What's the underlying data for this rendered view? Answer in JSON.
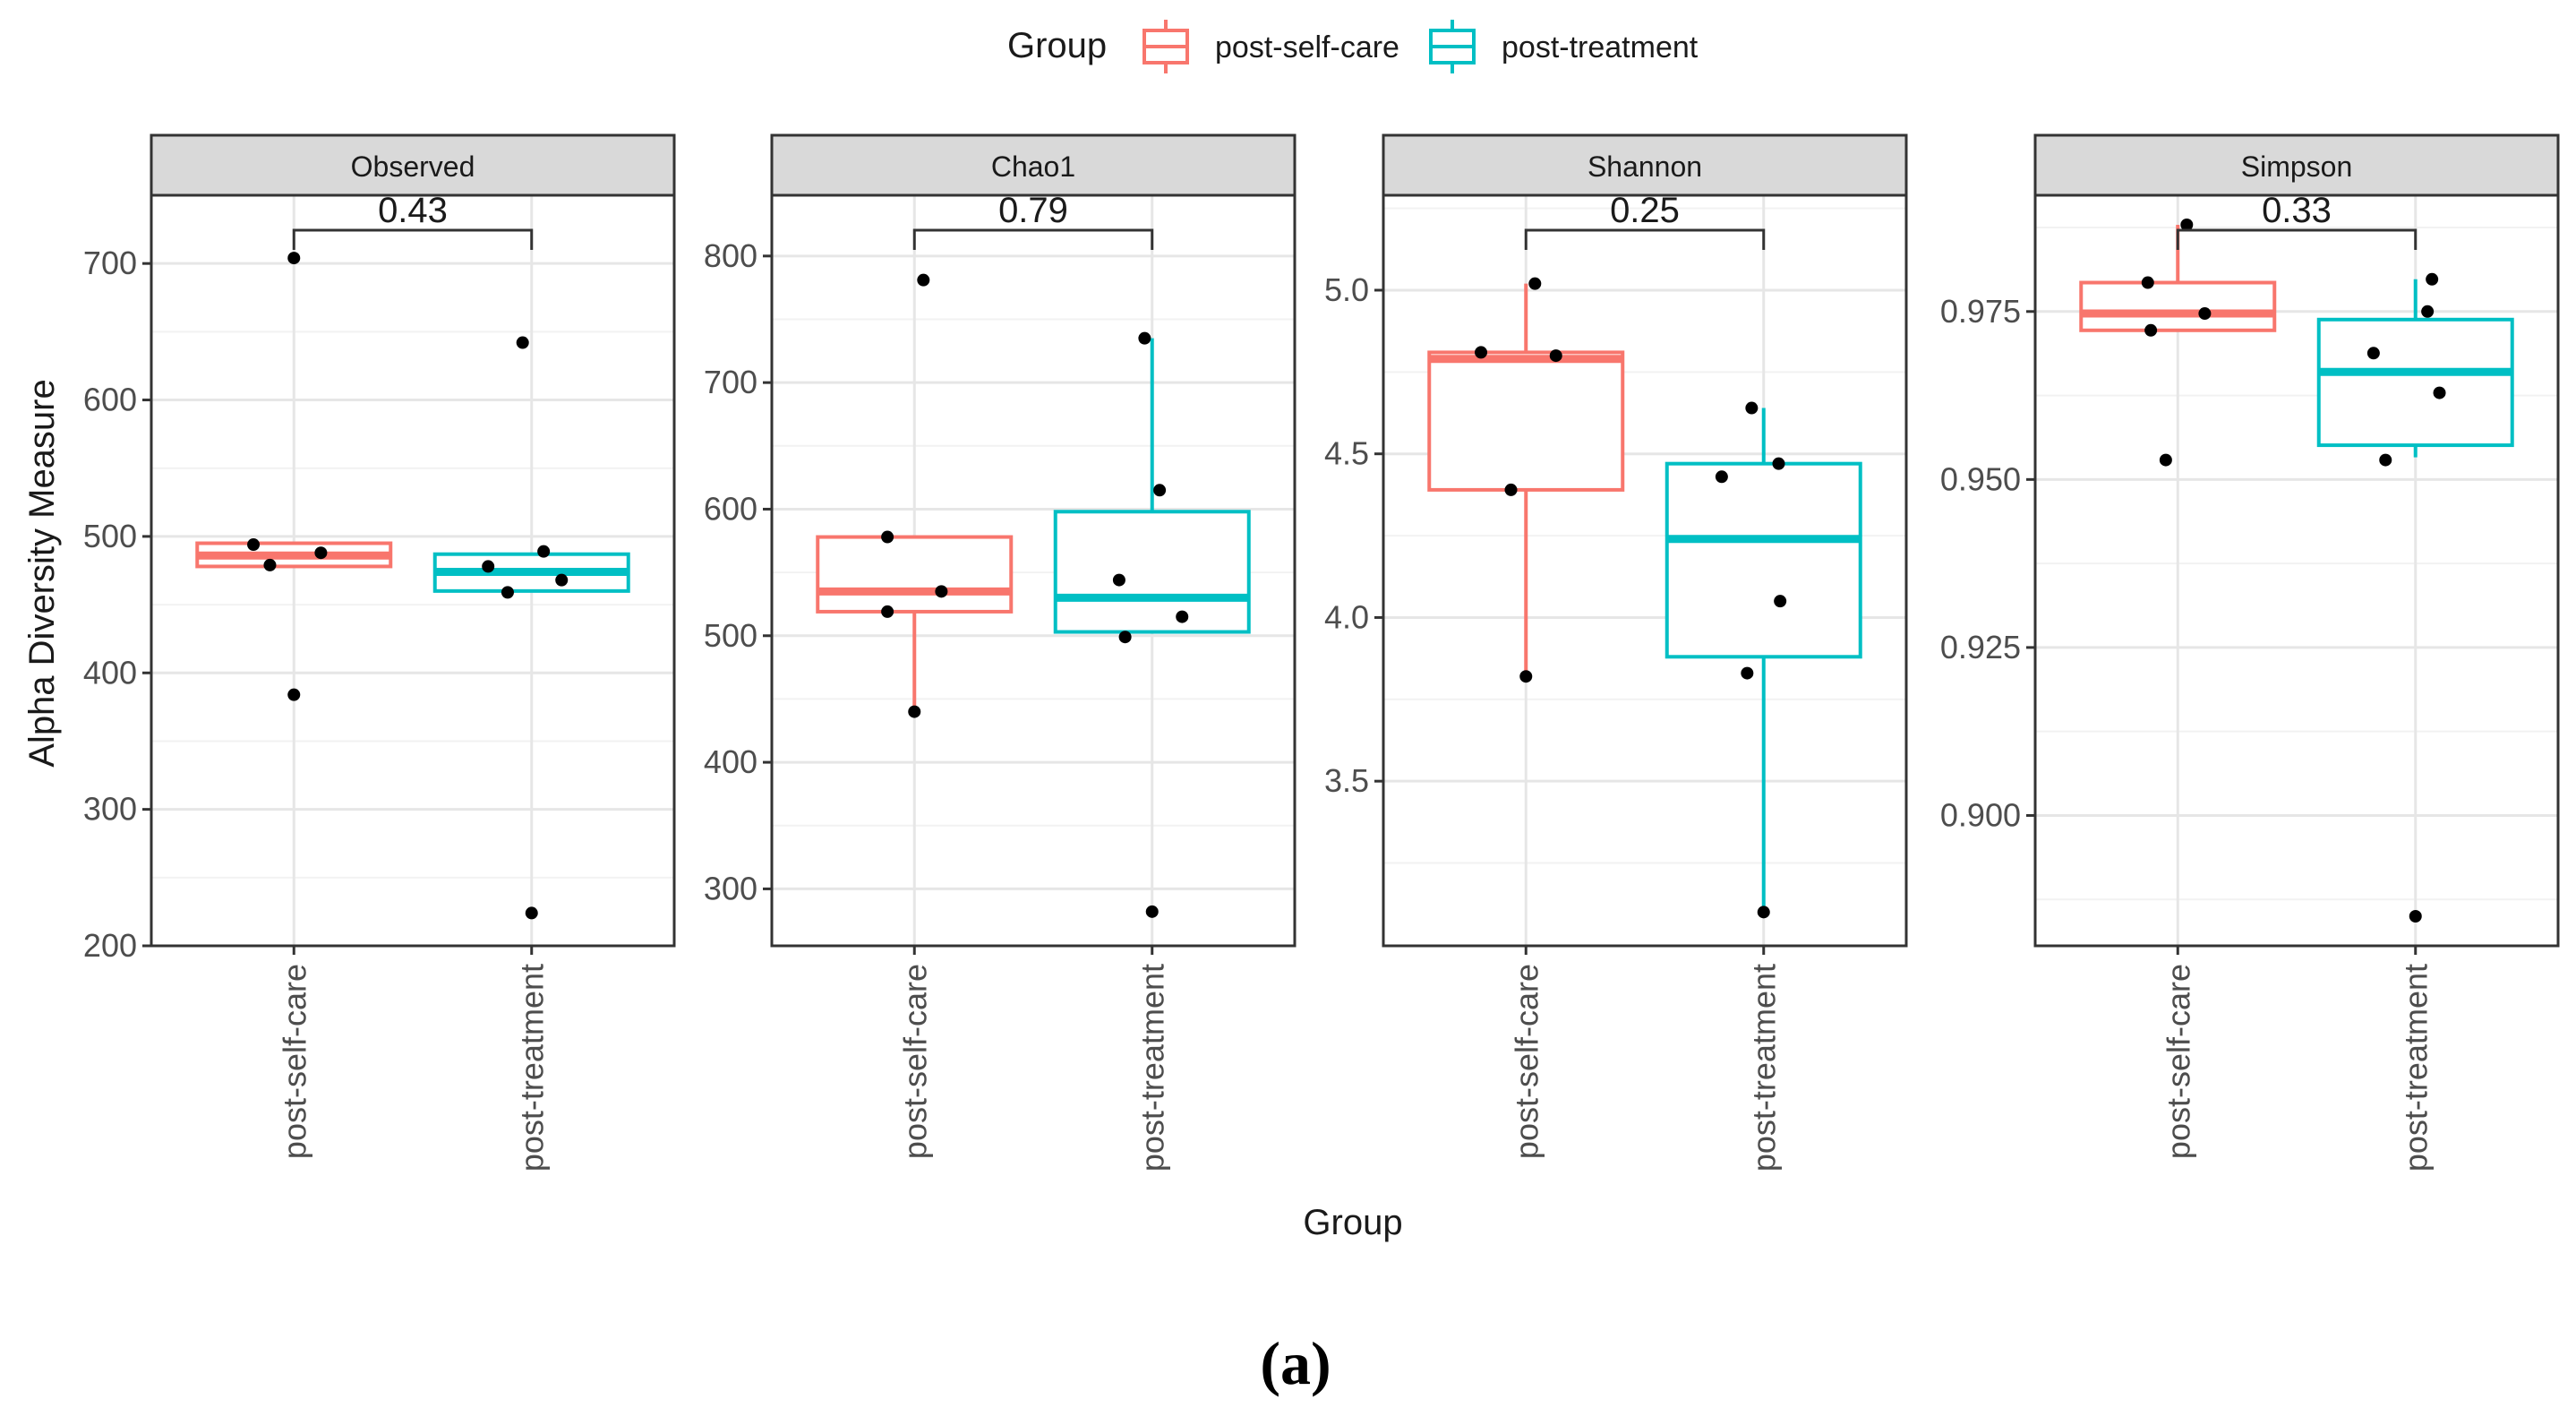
{
  "caption": "(a)",
  "chart_data": {
    "type": "boxplot",
    "ylabel": "Alpha Diversity Measure",
    "xlabel": "Group",
    "categories": [
      "post-self-care",
      "post-treatment"
    ],
    "legend": {
      "title": "Group",
      "position": "top-center",
      "entries": [
        {
          "name": "post-self-care",
          "color": "#F8766D"
        },
        {
          "name": "post-treatment",
          "color": "#00BFC4"
        }
      ]
    },
    "panels": [
      {
        "name": "Observed",
        "pvalue": "0.43",
        "ylim": [
          200,
          750
        ],
        "yticks": [
          200,
          300,
          400,
          500,
          600,
          700
        ],
        "ytick_labels": [
          "200",
          "300",
          "400",
          "500",
          "600",
          "700"
        ],
        "boxes": [
          {
            "group": "post-self-care",
            "q1": 478,
            "median": 486,
            "q3": 495,
            "whisker_low": 478,
            "whisker_high": 495
          },
          {
            "group": "post-treatment",
            "q1": 460,
            "median": 474,
            "q3": 487,
            "whisker_low": 460,
            "whisker_high": 487
          }
        ],
        "points": [
          {
            "group": "post-self-care",
            "jitter": 0.0,
            "y": 704
          },
          {
            "group": "post-self-care",
            "jitter": -0.27,
            "y": 494
          },
          {
            "group": "post-self-care",
            "jitter": 0.18,
            "y": 488
          },
          {
            "group": "post-self-care",
            "jitter": -0.16,
            "y": 479
          },
          {
            "group": "post-self-care",
            "jitter": 0.0,
            "y": 384
          },
          {
            "group": "post-treatment",
            "jitter": -0.06,
            "y": 642
          },
          {
            "group": "post-treatment",
            "jitter": 0.08,
            "y": 489
          },
          {
            "group": "post-treatment",
            "jitter": -0.29,
            "y": 478
          },
          {
            "group": "post-treatment",
            "jitter": 0.2,
            "y": 468
          },
          {
            "group": "post-treatment",
            "jitter": -0.16,
            "y": 459
          },
          {
            "group": "post-treatment",
            "jitter": 0.0,
            "y": 224
          }
        ]
      },
      {
        "name": "Chao1",
        "pvalue": "0.79",
        "ylim": [
          255,
          848
        ],
        "yticks": [
          300,
          400,
          500,
          600,
          700,
          800
        ],
        "ytick_labels": [
          "300",
          "400",
          "500",
          "600",
          "700",
          "800"
        ],
        "boxes": [
          {
            "group": "post-self-care",
            "q1": 519,
            "median": 535,
            "q3": 578,
            "whisker_low": 440,
            "whisker_high": 578
          },
          {
            "group": "post-treatment",
            "q1": 503,
            "median": 530,
            "q3": 598,
            "whisker_low": 503,
            "whisker_high": 735
          }
        ],
        "points": [
          {
            "group": "post-self-care",
            "jitter": 0.06,
            "y": 781
          },
          {
            "group": "post-self-care",
            "jitter": -0.18,
            "y": 578
          },
          {
            "group": "post-self-care",
            "jitter": 0.18,
            "y": 535
          },
          {
            "group": "post-self-care",
            "jitter": -0.18,
            "y": 519
          },
          {
            "group": "post-self-care",
            "jitter": 0.0,
            "y": 440
          },
          {
            "group": "post-treatment",
            "jitter": -0.05,
            "y": 735
          },
          {
            "group": "post-treatment",
            "jitter": 0.05,
            "y": 615
          },
          {
            "group": "post-treatment",
            "jitter": -0.22,
            "y": 544
          },
          {
            "group": "post-treatment",
            "jitter": 0.2,
            "y": 515
          },
          {
            "group": "post-treatment",
            "jitter": -0.18,
            "y": 499
          },
          {
            "group": "post-treatment",
            "jitter": 0.0,
            "y": 282
          }
        ]
      },
      {
        "name": "Shannon",
        "pvalue": "0.25",
        "ylim": [
          2.997,
          5.29
        ],
        "yticks": [
          3.5,
          4.0,
          4.5,
          5.0
        ],
        "ytick_labels": [
          "3.5",
          "4.0",
          "4.5",
          "5.0"
        ],
        "boxes": [
          {
            "group": "post-self-care",
            "q1": 4.39,
            "median": 4.79,
            "q3": 4.81,
            "whisker_low": 3.82,
            "whisker_high": 5.02
          },
          {
            "group": "post-treatment",
            "q1": 3.88,
            "median": 4.24,
            "q3": 4.47,
            "whisker_low": 3.1,
            "whisker_high": 4.64
          }
        ],
        "points": [
          {
            "group": "post-self-care",
            "jitter": 0.06,
            "y": 5.02
          },
          {
            "group": "post-self-care",
            "jitter": -0.3,
            "y": 4.81
          },
          {
            "group": "post-self-care",
            "jitter": 0.2,
            "y": 4.8
          },
          {
            "group": "post-self-care",
            "jitter": -0.1,
            "y": 4.39
          },
          {
            "group": "post-self-care",
            "jitter": 0.0,
            "y": 3.82
          },
          {
            "group": "post-treatment",
            "jitter": -0.08,
            "y": 4.64
          },
          {
            "group": "post-treatment",
            "jitter": 0.1,
            "y": 4.47
          },
          {
            "group": "post-treatment",
            "jitter": -0.28,
            "y": 4.43
          },
          {
            "group": "post-treatment",
            "jitter": 0.11,
            "y": 4.05
          },
          {
            "group": "post-treatment",
            "jitter": -0.11,
            "y": 3.83
          },
          {
            "group": "post-treatment",
            "jitter": 0.0,
            "y": 3.1
          }
        ]
      },
      {
        "name": "Simpson",
        "pvalue": "0.33",
        "ylim": [
          0.8806,
          0.9923
        ],
        "yticks": [
          0.9,
          0.925,
          0.95,
          0.975
        ],
        "ytick_labels": [
          "0.900",
          "0.925",
          "0.950",
          "0.975"
        ],
        "boxes": [
          {
            "group": "post-self-care",
            "q1": 0.9722,
            "median": 0.9747,
            "q3": 0.9793,
            "whisker_low": 0.9722,
            "whisker_high": 0.9879
          },
          {
            "group": "post-treatment",
            "q1": 0.9551,
            "median": 0.966,
            "q3": 0.9738,
            "whisker_low": 0.9533,
            "whisker_high": 0.9798
          }
        ],
        "points": [
          {
            "group": "post-self-care",
            "jitter": 0.06,
            "y": 0.9879
          },
          {
            "group": "post-self-care",
            "jitter": -0.2,
            "y": 0.9793
          },
          {
            "group": "post-self-care",
            "jitter": 0.18,
            "y": 0.9747
          },
          {
            "group": "post-self-care",
            "jitter": -0.18,
            "y": 0.9722
          },
          {
            "group": "post-self-care",
            "jitter": -0.08,
            "y": 0.9529
          },
          {
            "group": "post-treatment",
            "jitter": 0.11,
            "y": 0.9798
          },
          {
            "group": "post-treatment",
            "jitter": 0.08,
            "y": 0.975
          },
          {
            "group": "post-treatment",
            "jitter": -0.28,
            "y": 0.9688
          },
          {
            "group": "post-treatment",
            "jitter": 0.16,
            "y": 0.9629
          },
          {
            "group": "post-treatment",
            "jitter": -0.2,
            "y": 0.9529
          },
          {
            "group": "post-treatment",
            "jitter": 0.0,
            "y": 0.885
          }
        ]
      }
    ]
  }
}
